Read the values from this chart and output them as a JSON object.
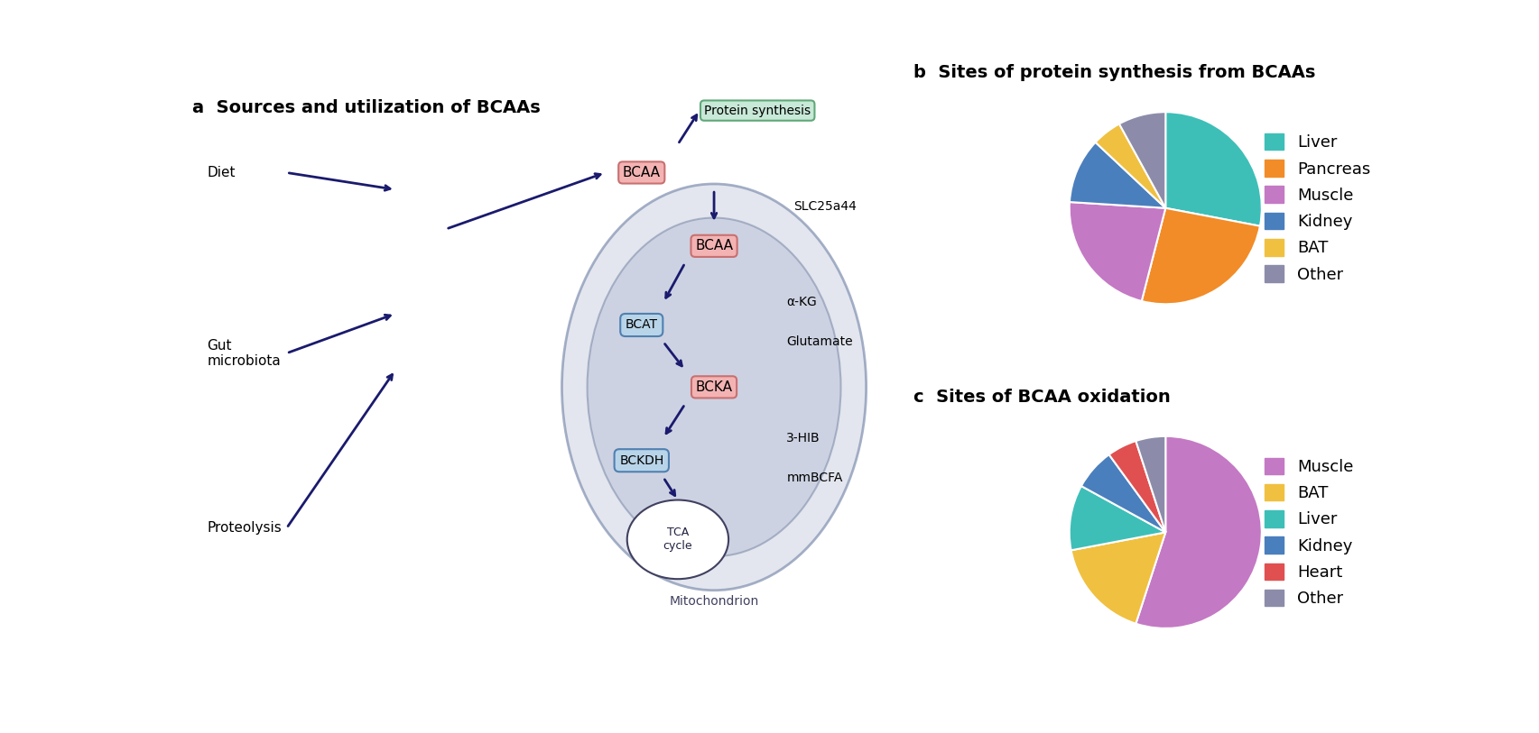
{
  "title_a": "a  Sources and utilization of BCAAs",
  "title_b": "b  Sites of protein synthesis from BCAAs",
  "title_c": "c  Sites of BCAA oxidation",
  "pie_b_labels": [
    "Liver",
    "Pancreas",
    "Muscle",
    "Kidney",
    "BAT",
    "Other"
  ],
  "pie_b_values": [
    28,
    26,
    22,
    11,
    5,
    8
  ],
  "pie_b_colors": [
    "#3dbfb8",
    "#f28c28",
    "#c479c4",
    "#4a7fbd",
    "#f0c040",
    "#8c8caa"
  ],
  "pie_b_startangle": 90,
  "pie_c_labels": [
    "Muscle",
    "BAT",
    "Liver",
    "Kidney",
    "Heart",
    "Other"
  ],
  "pie_c_values": [
    55,
    17,
    11,
    7,
    5,
    5
  ],
  "pie_c_colors": [
    "#c479c4",
    "#f0c040",
    "#3dbfb8",
    "#4a7fbd",
    "#e05050",
    "#8c8caa"
  ],
  "pie_c_startangle": 90,
  "legend_fontsize": 13,
  "title_fontsize": 14,
  "background_color": "#ffffff"
}
